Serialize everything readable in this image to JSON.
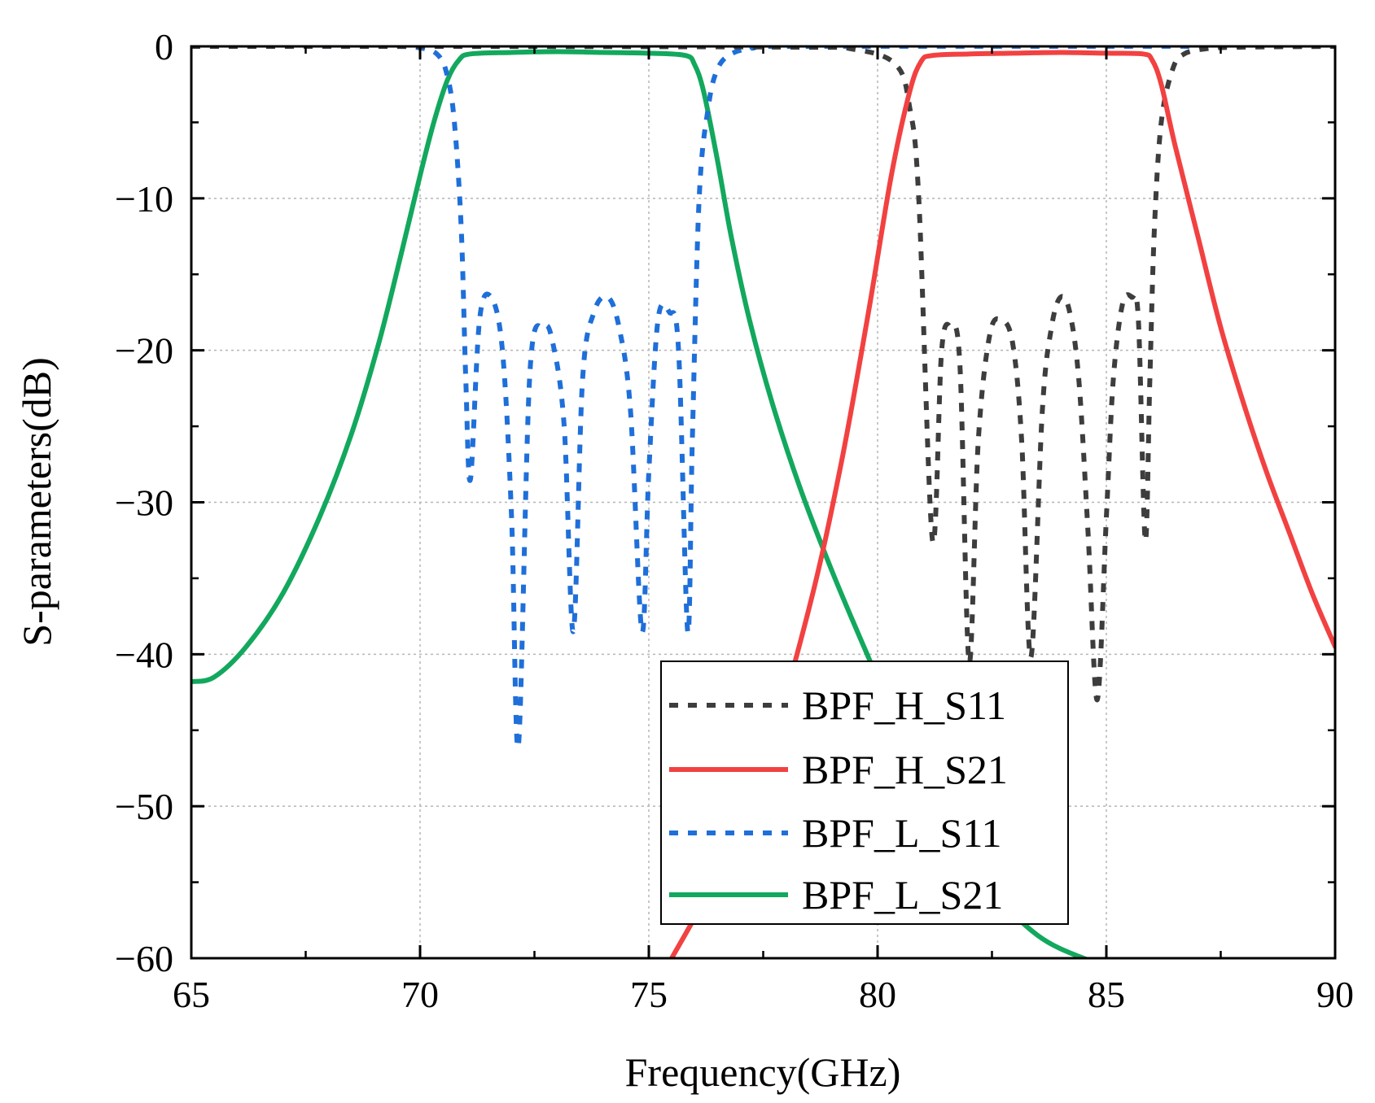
{
  "chart_data": {
    "type": "line",
    "title": "",
    "xlabel": "Frequency(GHz)",
    "ylabel": "S-parameters(dB)",
    "xlim": [
      65,
      90
    ],
    "ylim": [
      -60,
      0
    ],
    "xticks": [
      65,
      70,
      75,
      80,
      85,
      90
    ],
    "yticks": [
      0,
      -10,
      -20,
      -30,
      -40,
      -50,
      -60
    ],
    "xtick_labels": [
      "65",
      "70",
      "75",
      "80",
      "85",
      "90"
    ],
    "ytick_labels": [
      "0",
      "−10",
      "−20",
      "−30",
      "−40",
      "−50",
      "−60"
    ],
    "grid": true,
    "legend_position": "bottom-right",
    "series": [
      {
        "name": "BPF_H_S11",
        "color": "#3d3d3d",
        "style": "dashed",
        "x": [
          65,
          70,
          78,
          79.5,
          80.4,
          80.7,
          80.9,
          81.2,
          81.4,
          81.6,
          81.8,
          82.0,
          82.2,
          82.45,
          82.7,
          82.95,
          83.15,
          83.35,
          83.6,
          83.8,
          84.0,
          84.2,
          84.4,
          84.6,
          84.8,
          85.0,
          85.15,
          85.35,
          85.55,
          85.7,
          85.85,
          85.95,
          86.05,
          86.2,
          86.45,
          86.7,
          87.2,
          88,
          90
        ],
        "y": [
          0,
          0,
          -0.05,
          -0.2,
          -1.2,
          -4,
          -10,
          -32.5,
          -20,
          -18.5,
          -21,
          -40.5,
          -26,
          -19,
          -18,
          -19.5,
          -26,
          -40.2,
          -24,
          -18.5,
          -16.5,
          -17.5,
          -22,
          -32,
          -43,
          -31,
          -22,
          -17,
          -16.5,
          -18,
          -32.5,
          -22,
          -12,
          -5,
          -1.5,
          -0.5,
          -0.15,
          -0.05,
          0
        ]
      },
      {
        "name": "BPF_H_S21",
        "color": "#f24141",
        "style": "solid",
        "x": [
          75.5,
          76.5,
          77.5,
          78.5,
          79.2,
          79.8,
          80.3,
          80.7,
          80.95,
          81.2,
          82,
          83,
          84,
          85,
          85.8,
          86.0,
          86.2,
          86.5,
          87.0,
          87.5,
          88,
          88.5,
          89,
          89.5,
          90
        ],
        "y": [
          -60,
          -54.5,
          -47.5,
          -37,
          -27.5,
          -17.5,
          -8.5,
          -3,
          -1,
          -0.6,
          -0.5,
          -0.45,
          -0.4,
          -0.45,
          -0.5,
          -0.9,
          -2.5,
          -6.5,
          -12.5,
          -18.5,
          -23.5,
          -28,
          -32,
          -36,
          -39.5
        ],
        "clip_below": true
      },
      {
        "name": "BPF_L_S11",
        "color": "#1f6fd9",
        "style": "dashed",
        "x": [
          65,
          69,
          70.0,
          70.4,
          70.6,
          70.75,
          70.9,
          71.0,
          71.1,
          71.3,
          71.55,
          71.8,
          72.0,
          72.15,
          72.4,
          72.7,
          72.9,
          73.15,
          73.35,
          73.55,
          73.8,
          74.1,
          74.35,
          74.6,
          74.85,
          75.0,
          75.2,
          75.45,
          75.65,
          75.85,
          75.95,
          76.1,
          76.3,
          76.5,
          76.8,
          77.3,
          78,
          90
        ],
        "y": [
          0,
          0,
          -0.1,
          -0.6,
          -2,
          -5,
          -12,
          -22,
          -28.5,
          -18,
          -16.5,
          -20,
          -31,
          -46,
          -21.5,
          -18.5,
          -19.5,
          -25,
          -38.5,
          -22,
          -17.5,
          -16.5,
          -18.5,
          -24,
          -38.5,
          -28,
          -18,
          -17.5,
          -20,
          -38.5,
          -26,
          -10,
          -4,
          -1.5,
          -0.5,
          -0.1,
          0,
          0
        ]
      },
      {
        "name": "BPF_L_S21",
        "color": "#12a85d",
        "style": "solid",
        "x": [
          65,
          65.5,
          66.2,
          67,
          67.8,
          68.5,
          69.1,
          69.6,
          70.0,
          70.3,
          70.6,
          70.85,
          71.1,
          72,
          73,
          74,
          75,
          75.8,
          76.0,
          76.2,
          76.5,
          76.8,
          77.2,
          77.7,
          78.3,
          79.0,
          79.7,
          80.5,
          81.5,
          82.5,
          83.5,
          84.5,
          85.2
        ],
        "y": [
          -41.8,
          -41.5,
          -39.5,
          -36,
          -31,
          -25.5,
          -19.5,
          -13.5,
          -8.5,
          -5,
          -2.2,
          -0.9,
          -0.5,
          -0.4,
          -0.35,
          -0.4,
          -0.45,
          -0.6,
          -1.2,
          -3,
          -7.5,
          -12.5,
          -18,
          -23.5,
          -29,
          -34.5,
          -39.5,
          -45,
          -51,
          -55.5,
          -58.5,
          -60,
          -60.5
        ],
        "clip_below": true
      }
    ]
  }
}
